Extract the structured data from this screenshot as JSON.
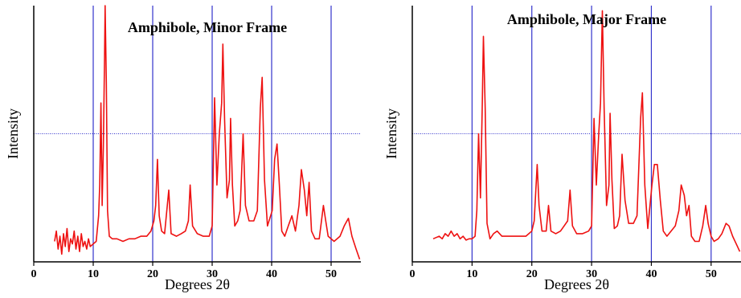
{
  "colors": {
    "series": "#ee1111",
    "vgrid": "#3333cc",
    "hgrid": "#3333cc",
    "axis": "#000000"
  },
  "chart_data": [
    {
      "type": "line",
      "title": "Amphibole, Minor Frame",
      "xlabel": "Degrees 2θ",
      "ylabel": "Intensity",
      "xlim": [
        0,
        55
      ],
      "ylim": [
        0,
        100
      ],
      "xticks": [
        0,
        10,
        20,
        30,
        40,
        50
      ],
      "grid": {
        "x": [
          10,
          20,
          30,
          40,
          50
        ],
        "y": [
          50
        ]
      },
      "series": [
        {
          "values": [
            [
              3.5,
              8
            ],
            [
              3.8,
              12
            ],
            [
              4.1,
              5
            ],
            [
              4.4,
              10
            ],
            [
              4.7,
              3
            ],
            [
              5,
              11
            ],
            [
              5.3,
              6
            ],
            [
              5.6,
              13
            ],
            [
              5.9,
              4
            ],
            [
              6.2,
              9
            ],
            [
              6.5,
              7
            ],
            [
              6.8,
              12
            ],
            [
              7.1,
              5
            ],
            [
              7.4,
              10
            ],
            [
              7.7,
              4
            ],
            [
              8,
              11
            ],
            [
              8.3,
              6
            ],
            [
              8.6,
              8
            ],
            [
              8.9,
              5
            ],
            [
              9.2,
              9
            ],
            [
              9.5,
              6
            ],
            [
              10,
              7
            ],
            [
              10.5,
              8
            ],
            [
              10.9,
              18
            ],
            [
              11.1,
              30
            ],
            [
              11.3,
              62
            ],
            [
              11.5,
              22
            ],
            [
              11.7,
              45
            ],
            [
              11.9,
              80
            ],
            [
              12,
              100
            ],
            [
              12.2,
              70
            ],
            [
              12.4,
              20
            ],
            [
              12.7,
              10
            ],
            [
              13.2,
              9
            ],
            [
              14,
              9
            ],
            [
              15,
              8
            ],
            [
              16,
              9
            ],
            [
              17,
              9
            ],
            [
              18,
              10
            ],
            [
              19,
              10
            ],
            [
              19.7,
              12
            ],
            [
              20.2,
              16
            ],
            [
              20.5,
              22
            ],
            [
              20.8,
              40
            ],
            [
              21.1,
              18
            ],
            [
              21.5,
              12
            ],
            [
              22,
              11
            ],
            [
              22.7,
              28
            ],
            [
              23.1,
              11
            ],
            [
              24,
              10
            ],
            [
              24.8,
              11
            ],
            [
              25.5,
              12
            ],
            [
              26,
              16
            ],
            [
              26.3,
              30
            ],
            [
              26.7,
              14
            ],
            [
              27.5,
              11
            ],
            [
              28.5,
              10
            ],
            [
              29.5,
              10
            ],
            [
              30,
              14
            ],
            [
              30.4,
              64
            ],
            [
              30.8,
              30
            ],
            [
              31.2,
              50
            ],
            [
              31.6,
              62
            ],
            [
              31.8,
              85
            ],
            [
              32.1,
              55
            ],
            [
              32.5,
              25
            ],
            [
              32.9,
              32
            ],
            [
              33.1,
              56
            ],
            [
              33.4,
              30
            ],
            [
              33.8,
              14
            ],
            [
              34.3,
              16
            ],
            [
              34.7,
              20
            ],
            [
              35.2,
              50
            ],
            [
              35.6,
              22
            ],
            [
              36.2,
              16
            ],
            [
              37,
              16
            ],
            [
              37.6,
              20
            ],
            [
              38.1,
              60
            ],
            [
              38.4,
              72
            ],
            [
              38.8,
              32
            ],
            [
              39.3,
              14
            ],
            [
              40.1,
              20
            ],
            [
              40.5,
              40
            ],
            [
              40.9,
              46
            ],
            [
              41.3,
              30
            ],
            [
              41.7,
              12
            ],
            [
              42.2,
              10
            ],
            [
              42.8,
              14
            ],
            [
              43.4,
              18
            ],
            [
              44,
              12
            ],
            [
              44.6,
              22
            ],
            [
              45,
              36
            ],
            [
              45.5,
              28
            ],
            [
              45.9,
              18
            ],
            [
              46.3,
              31
            ],
            [
              46.7,
              12
            ],
            [
              47.3,
              9
            ],
            [
              48,
              9
            ],
            [
              48.7,
              22
            ],
            [
              49.1,
              16
            ],
            [
              49.5,
              10
            ],
            [
              50.5,
              8
            ],
            [
              51.5,
              10
            ],
            [
              52.2,
              14
            ],
            [
              52.9,
              17
            ],
            [
              53.5,
              10
            ],
            [
              54.2,
              5
            ],
            [
              54.8,
              1
            ]
          ]
        }
      ]
    },
    {
      "type": "line",
      "title": "Amphibole, Major Frame",
      "xlabel": "Degrees 2θ",
      "ylabel": "Intensity",
      "xlim": [
        0,
        55
      ],
      "ylim": [
        0,
        100
      ],
      "xticks": [
        0,
        10,
        20,
        30,
        40,
        50
      ],
      "grid": {
        "x": [
          10,
          20,
          30,
          40,
          50
        ],
        "y": [
          50
        ]
      },
      "series": [
        {
          "values": [
            [
              3.5,
              9
            ],
            [
              4,
              9.5
            ],
            [
              4.5,
              10
            ],
            [
              5,
              9
            ],
            [
              5.5,
              11
            ],
            [
              6,
              10
            ],
            [
              6.5,
              12
            ],
            [
              7,
              10
            ],
            [
              7.5,
              11
            ],
            [
              8,
              9
            ],
            [
              8.5,
              10
            ],
            [
              9,
              8.5
            ],
            [
              9.5,
              9
            ],
            [
              10,
              9
            ],
            [
              10.5,
              10
            ],
            [
              10.8,
              20
            ],
            [
              11.1,
              50
            ],
            [
              11.4,
              25
            ],
            [
              11.7,
              60
            ],
            [
              11.9,
              88
            ],
            [
              12.2,
              60
            ],
            [
              12.5,
              15
            ],
            [
              13,
              9
            ],
            [
              13.6,
              11
            ],
            [
              14.2,
              12
            ],
            [
              15,
              10
            ],
            [
              16,
              10
            ],
            [
              17,
              10
            ],
            [
              18,
              10
            ],
            [
              19,
              10
            ],
            [
              20,
              12
            ],
            [
              20.4,
              16
            ],
            [
              20.9,
              38
            ],
            [
              21.2,
              22
            ],
            [
              21.7,
              12
            ],
            [
              22.4,
              12
            ],
            [
              22.8,
              22
            ],
            [
              23.2,
              12
            ],
            [
              24,
              11
            ],
            [
              24.8,
              12
            ],
            [
              25.4,
              14
            ],
            [
              26,
              16
            ],
            [
              26.4,
              28
            ],
            [
              26.8,
              14
            ],
            [
              27.5,
              11
            ],
            [
              28.5,
              11
            ],
            [
              29.5,
              12
            ],
            [
              30,
              14
            ],
            [
              30.4,
              56
            ],
            [
              30.8,
              30
            ],
            [
              31.2,
              50
            ],
            [
              31.5,
              62
            ],
            [
              31.8,
              98
            ],
            [
              32.1,
              60
            ],
            [
              32.5,
              22
            ],
            [
              32.9,
              30
            ],
            [
              33.1,
              58
            ],
            [
              33.4,
              32
            ],
            [
              33.8,
              13
            ],
            [
              34.3,
              14
            ],
            [
              34.7,
              18
            ],
            [
              35.1,
              42
            ],
            [
              35.6,
              24
            ],
            [
              36.2,
              15
            ],
            [
              37,
              15
            ],
            [
              37.6,
              18
            ],
            [
              38.2,
              56
            ],
            [
              38.5,
              66
            ],
            [
              38.9,
              30
            ],
            [
              39.4,
              13
            ],
            [
              40.1,
              30
            ],
            [
              40.5,
              38
            ],
            [
              41,
              38
            ],
            [
              41.5,
              24
            ],
            [
              42,
              12
            ],
            [
              42.6,
              10
            ],
            [
              43.3,
              12
            ],
            [
              44,
              14
            ],
            [
              44.6,
              20
            ],
            [
              45,
              30
            ],
            [
              45.5,
              26
            ],
            [
              45.9,
              18
            ],
            [
              46.3,
              22
            ],
            [
              46.7,
              10
            ],
            [
              47.3,
              8
            ],
            [
              48,
              8
            ],
            [
              48.6,
              14
            ],
            [
              49.1,
              22
            ],
            [
              49.5,
              15
            ],
            [
              50,
              10
            ],
            [
              50.5,
              8
            ],
            [
              51.2,
              9
            ],
            [
              51.8,
              11
            ],
            [
              52.5,
              15
            ],
            [
              53,
              14
            ],
            [
              53.6,
              10
            ],
            [
              54.2,
              7
            ],
            [
              54.8,
              4
            ]
          ]
        }
      ]
    }
  ]
}
